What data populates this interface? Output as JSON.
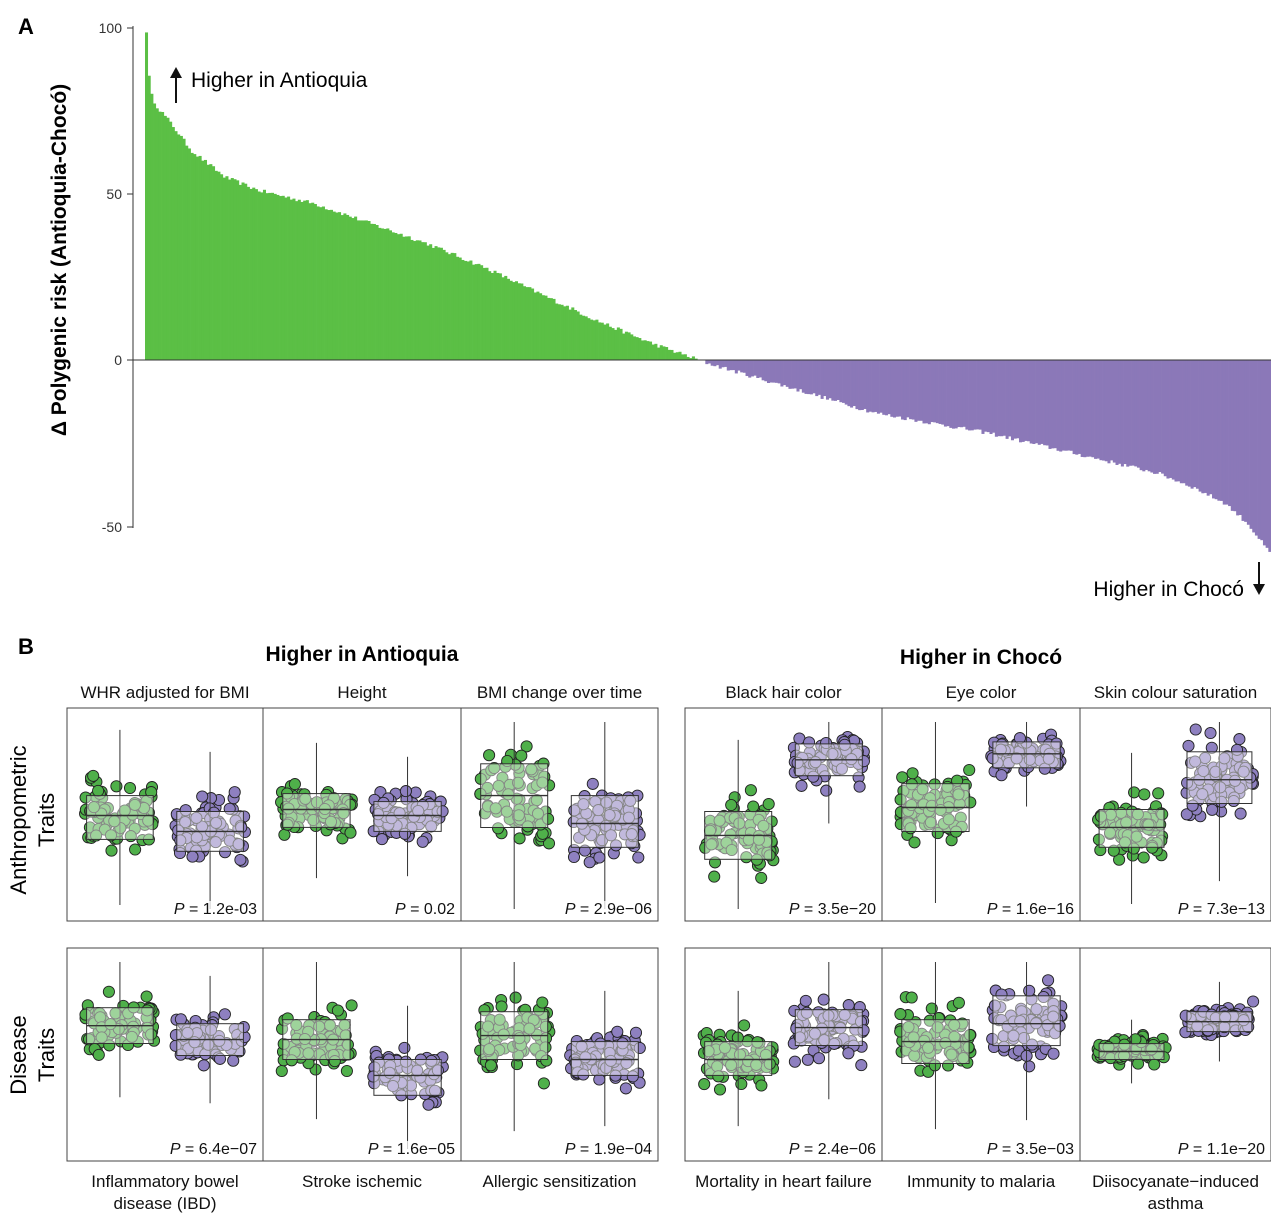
{
  "panel_a": {
    "letter": "A",
    "ylabel": "Δ Polygenic risk (Antioquia-Chocó)",
    "yticks": [
      "100",
      "50",
      "0",
      "-50"
    ],
    "annotation_top": "Higher in Antioquia",
    "annotation_bottom": "Higher in Chocó",
    "colors": {
      "positive": "#5bbf45",
      "negative": "#8b78b8"
    }
  },
  "panel_b": {
    "letter": "B",
    "group_left": "Higher in Antioquia",
    "group_right": "Higher in Chocó",
    "row_labels": [
      [
        "Anthropometric",
        "Traits"
      ],
      [
        "Disease",
        "Traits"
      ]
    ],
    "colors": {
      "antioquia": "#4fb04a",
      "choco": "#8e80c0"
    },
    "subplots": [
      {
        "title": "WHR adjusted for BMI",
        "title_position": "top",
        "p": "P = 1.2e-03",
        "p_prefix": "P",
        "p_value": " = 1.2e-03",
        "higher": "antioquia",
        "box_antioquia": [
          0.38,
          0.5,
          0.6
        ],
        "box_choco": [
          0.32,
          0.42,
          0.52
        ]
      },
      {
        "title": "Height",
        "title_position": "top",
        "p": "P = 0.02",
        "p_prefix": "P",
        "p_value": " = 0.02",
        "higher": "antioquia",
        "box_antioquia": [
          0.44,
          0.53,
          0.61
        ],
        "box_choco": [
          0.42,
          0.5,
          0.57
        ]
      },
      {
        "title": "BMI change over time",
        "title_position": "top",
        "p": "P = 2.9e−06",
        "p_prefix": "P",
        "p_value": " = 2.9e−06",
        "higher": "antioquia",
        "box_antioquia": [
          0.44,
          0.6,
          0.76
        ],
        "box_choco": [
          0.34,
          0.46,
          0.6
        ]
      },
      {
        "title": "Black hair color",
        "title_position": "top",
        "p": "P = 3.5e−20",
        "p_prefix": "P",
        "p_value": " = 3.5e−20",
        "higher": "choco",
        "box_antioquia": [
          0.28,
          0.4,
          0.52
        ],
        "box_choco": [
          0.7,
          0.78,
          0.86
        ]
      },
      {
        "title": "Eye color",
        "title_position": "top",
        "p": "P = 1.6e−16",
        "p_prefix": "P",
        "p_value": " = 1.6e−16",
        "higher": "choco",
        "box_antioquia": [
          0.42,
          0.54,
          0.66
        ],
        "box_choco": [
          0.74,
          0.81,
          0.87
        ]
      },
      {
        "title": "Skin colour saturation",
        "title_position": "top",
        "p": "P = 7.3e−13",
        "p_prefix": "P",
        "p_value": " = 7.3e−13",
        "higher": "choco",
        "box_antioquia": [
          0.34,
          0.44,
          0.53
        ],
        "box_choco": [
          0.56,
          0.68,
          0.82
        ]
      },
      {
        "title": "Inflammatory bowel disease (IBD)",
        "title_lines": [
          "Inflammatory bowel",
          "disease (IBD)"
        ],
        "title_position": "bottom",
        "p": "P = 6.4e−07",
        "p_prefix": "P",
        "p_value": " = 6.4e−07",
        "higher": "antioquia",
        "box_antioquia": [
          0.56,
          0.65,
          0.74
        ],
        "box_choco": [
          0.5,
          0.58,
          0.66
        ]
      },
      {
        "title": "Stroke ischemic",
        "title_lines": [
          "Stroke ischemic"
        ],
        "title_position": "bottom",
        "p": "P = 1.6e−05",
        "p_prefix": "P",
        "p_value": " = 1.6e−05",
        "higher": "antioquia",
        "box_antioquia": [
          0.48,
          0.58,
          0.68
        ],
        "box_choco": [
          0.3,
          0.4,
          0.48
        ]
      },
      {
        "title": "Allergic sensitization",
        "title_lines": [
          "Allergic sensitization"
        ],
        "title_position": "bottom",
        "p": "P = 1.9e−04",
        "p_prefix": "P",
        "p_value": " = 1.9e−04",
        "higher": "antioquia",
        "box_antioquia": [
          0.48,
          0.6,
          0.72
        ],
        "box_choco": [
          0.4,
          0.48,
          0.57
        ]
      },
      {
        "title": "Mortality in heart failure",
        "title_lines": [
          "Mortality in heart failure"
        ],
        "title_position": "bottom",
        "p": "P = 2.4e−06",
        "p_prefix": "P",
        "p_value": " = 2.4e−06",
        "higher": "choco",
        "box_antioquia": [
          0.4,
          0.48,
          0.57
        ],
        "box_choco": [
          0.55,
          0.64,
          0.73
        ]
      },
      {
        "title": "Immunity to malaria",
        "title_lines": [
          "Immunity to malaria"
        ],
        "title_position": "bottom",
        "p": "P = 3.5e−03",
        "p_prefix": "P",
        "p_value": " = 3.5e−03",
        "higher": "choco",
        "box_antioquia": [
          0.46,
          0.57,
          0.68
        ],
        "box_choco": [
          0.55,
          0.66,
          0.8
        ]
      },
      {
        "title": "Diisocyanate−induced asthma",
        "title_lines": [
          "Diisocyanate−induced",
          "asthma"
        ],
        "title_position": "bottom",
        "p": "P = 1.1e−20",
        "p_prefix": "P",
        "p_value": " = 1.1e−20",
        "higher": "choco",
        "box_antioquia": [
          0.48,
          0.52,
          0.56
        ],
        "box_choco": [
          0.62,
          0.67,
          0.72
        ]
      }
    ]
  },
  "chart_data": [
    {
      "type": "bar",
      "title": "",
      "xlabel": "",
      "ylabel": "Δ Polygenic risk (Antioquia-Chocó)",
      "ylim": [
        -60,
        100
      ],
      "yticks": [
        100,
        50,
        0,
        -50
      ],
      "grid": false,
      "n_bars": 420,
      "sorted": "descending",
      "profile_rank_fraction": [
        0,
        0.002,
        0.005,
        0.01,
        0.02,
        0.04,
        0.07,
        0.1,
        0.15,
        0.2,
        0.25,
        0.3,
        0.35,
        0.4,
        0.45,
        0.5,
        0.55,
        0.6,
        0.65,
        0.7,
        0.75,
        0.8,
        0.85,
        0.9,
        0.93,
        0.96,
        0.98,
        1.0
      ],
      "profile_values": [
        99,
        86,
        79,
        76,
        72,
        63,
        55,
        51,
        47,
        41,
        35,
        28,
        20,
        12,
        5,
        -1,
        -6,
        -11,
        -16,
        -19,
        -22,
        -26,
        -30,
        -34,
        -38,
        -43,
        -49,
        -58
      ],
      "annotations": [
        "Higher in Antioquia",
        "Higher in Chocó"
      ]
    },
    {
      "type": "scatter",
      "description_kind": "jittered strip plots with boxplots, 12 panels",
      "groups": [
        "Antioquia",
        "Chocó"
      ],
      "panels": [
        "WHR adjusted for BMI",
        "Height",
        "BMI change over time",
        "Black hair color",
        "Eye color",
        "Skin colour saturation",
        "Inflammatory bowel disease (IBD)",
        "Stroke ischemic",
        "Allergic sensitization",
        "Mortality in heart failure",
        "Immunity to malaria",
        "Diisocyanate−induced asthma"
      ],
      "p_values": [
        "1.2e-03",
        "0.02",
        "2.9e−06",
        "3.5e−20",
        "1.6e−16",
        "7.3e−13",
        "6.4e−07",
        "1.6e−05",
        "1.9e−04",
        "2.4e−06",
        "3.5e−03",
        "1.1e−20"
      ],
      "points_per_group": 80
    }
  ]
}
